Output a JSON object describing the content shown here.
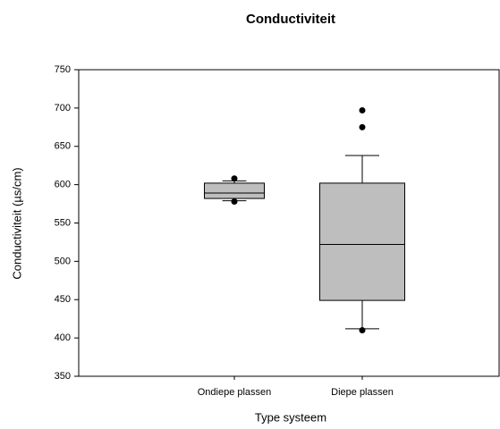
{
  "chart_data": {
    "type": "box",
    "title": "Conductiviteit",
    "x_label": "Type systeem",
    "y_label": "Conductiviteit (µs/cm)",
    "categories": [
      "Ondiepe plassen",
      "Diepe plassen"
    ],
    "color": "#bebebe",
    "boxes": [
      {
        "whisker_low": 579,
        "q1": 582,
        "median": 589,
        "q3": 602,
        "whisker_high": 605,
        "outliers": [
          608,
          578
        ]
      },
      {
        "whisker_low": 412,
        "q1": 449,
        "median": 522,
        "q3": 602,
        "whisker_high": 638,
        "outliers": [
          697,
          675,
          410
        ]
      }
    ],
    "ylim": [
      350,
      750
    ],
    "yticks": [
      350,
      400,
      450,
      500,
      550,
      600,
      650,
      700,
      750
    ],
    "grid": false
  }
}
